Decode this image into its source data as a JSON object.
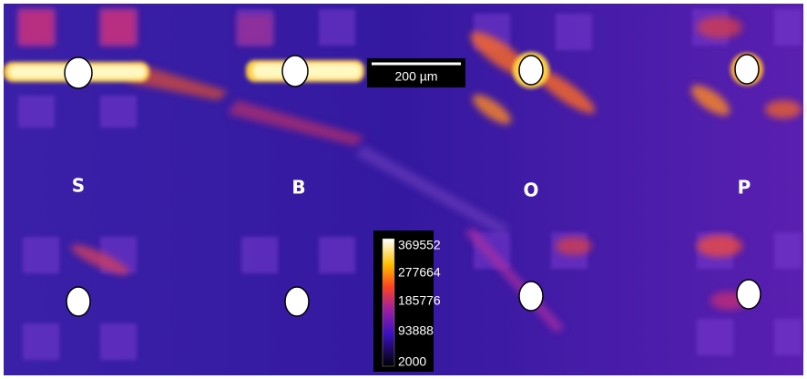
{
  "scale_bar": {
    "label": "200 µm"
  },
  "panel_labels": [
    "S",
    "B",
    "O",
    "P"
  ],
  "colorbar": {
    "ticks": [
      369552,
      277664,
      185776,
      93888,
      2000
    ]
  }
}
